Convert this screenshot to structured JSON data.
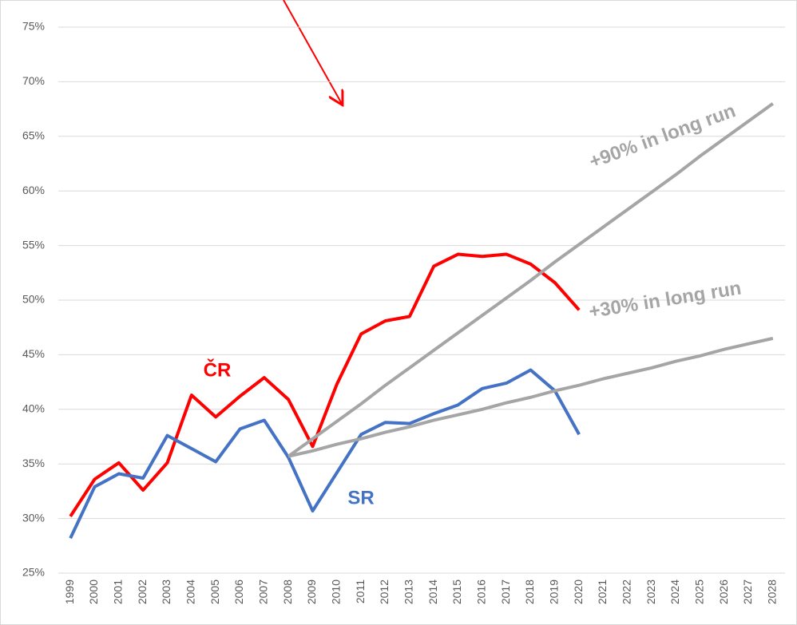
{
  "chart_data": {
    "type": "line",
    "categories": [
      "1999",
      "2000",
      "2001",
      "2002",
      "2003",
      "2004",
      "2005",
      "2006",
      "2007",
      "2008",
      "2009",
      "2010",
      "2011",
      "2012",
      "2013",
      "2014",
      "2015",
      "2016",
      "2017",
      "2018",
      "2019",
      "2020",
      "2021",
      "2022",
      "2023",
      "2024",
      "2025",
      "2026",
      "2027",
      "2028"
    ],
    "series": [
      {
        "name": "ČR",
        "color": "#ff0000",
        "values": [
          30.2,
          33.6,
          35.1,
          32.6,
          35.1,
          41.3,
          39.3,
          41.2,
          42.9,
          40.9,
          36.6,
          42.3,
          46.9,
          48.1,
          48.5,
          53.1,
          54.2,
          54.0,
          54.2,
          53.3,
          51.6,
          49.1,
          null,
          null,
          null,
          null,
          null,
          null,
          null,
          null
        ]
      },
      {
        "name": "SR",
        "color": "#4472c4",
        "values": [
          28.2,
          32.9,
          34.1,
          33.7,
          37.6,
          36.4,
          35.2,
          38.2,
          39.0,
          35.6,
          30.7,
          34.2,
          37.7,
          38.8,
          38.7,
          39.6,
          40.4,
          41.9,
          42.4,
          43.6,
          41.7,
          37.7,
          null,
          null,
          null,
          null,
          null,
          null,
          null,
          null
        ]
      },
      {
        "name": "+90% in long run",
        "color": "#a5a5a5",
        "values": [
          null,
          null,
          null,
          null,
          null,
          null,
          null,
          null,
          null,
          35.7,
          37.3,
          38.9,
          40.5,
          42.2,
          43.8,
          45.4,
          47.0,
          48.6,
          50.2,
          51.8,
          53.5,
          55.1,
          56.7,
          58.3,
          59.9,
          61.5,
          63.2,
          64.8,
          66.4,
          68.0
        ]
      },
      {
        "name": "+30% in long run",
        "color": "#a5a5a5",
        "values": [
          null,
          null,
          null,
          null,
          null,
          null,
          null,
          null,
          null,
          35.7,
          36.2,
          36.8,
          37.3,
          37.9,
          38.4,
          39.0,
          39.5,
          40.0,
          40.6,
          41.1,
          41.7,
          42.2,
          42.8,
          43.3,
          43.8,
          44.4,
          44.9,
          45.5,
          46.0,
          46.5
        ]
      }
    ],
    "ylim": [
      25,
      75
    ],
    "yticks": [
      {
        "value": 25,
        "label": "25%"
      },
      {
        "value": 30,
        "label": "30%"
      },
      {
        "value": 35,
        "label": "35%"
      },
      {
        "value": 40,
        "label": "40%"
      },
      {
        "value": 45,
        "label": "45%"
      },
      {
        "value": 50,
        "label": "50%"
      },
      {
        "value": 55,
        "label": "55%"
      },
      {
        "value": 60,
        "label": "60%"
      },
      {
        "value": 65,
        "label": "65%"
      },
      {
        "value": 70,
        "label": "70%"
      },
      {
        "value": 75,
        "label": "75%"
      }
    ],
    "grid": true
  }
}
